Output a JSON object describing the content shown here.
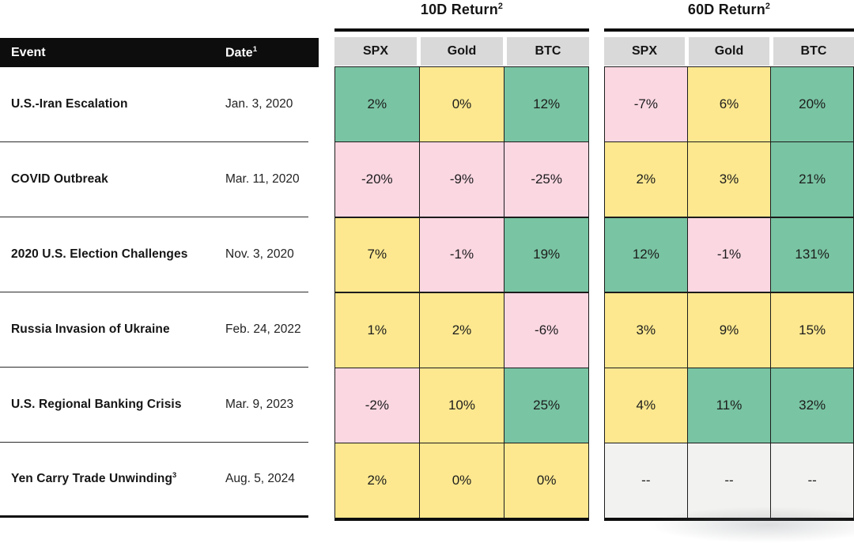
{
  "colors": {
    "positive_green": "#79c4a3",
    "neutral_yellow": "#fde88f",
    "negative_pink": "#fbd7e2",
    "na_gray": "#f2f2f0",
    "header_gray": "#d9d9d9",
    "header_black": "#0d0d0d"
  },
  "event_table": {
    "header": {
      "event_label": "Event",
      "date_label": "Date",
      "date_sup": "1"
    },
    "rows": [
      {
        "event": "U.S.-Iran Escalation",
        "sup": "",
        "date": "Jan. 3, 2020"
      },
      {
        "event": "COVID Outbreak",
        "sup": "",
        "date": "Mar. 11, 2020"
      },
      {
        "event": "2020 U.S. Election Challenges",
        "sup": "",
        "date": "Nov. 3, 2020"
      },
      {
        "event": "Russia Invasion of Ukraine",
        "sup": "",
        "date": "Feb. 24, 2022"
      },
      {
        "event": "U.S. Regional Banking Crisis",
        "sup": "",
        "date": "Mar. 9, 2023"
      },
      {
        "event": "Yen Carry Trade Unwinding",
        "sup": "3",
        "date": "Aug. 5, 2024"
      }
    ]
  },
  "g10": {
    "title": "10D Return",
    "sup": "2",
    "cols": [
      "SPX",
      "Gold",
      "BTC"
    ],
    "rows": [
      {
        "cells": [
          {
            "v": "2%",
            "c": "green"
          },
          {
            "v": "0%",
            "c": "yellow"
          },
          {
            "v": "12%",
            "c": "green"
          }
        ]
      },
      {
        "cells": [
          {
            "v": "-20%",
            "c": "pink"
          },
          {
            "v": "-9%",
            "c": "pink"
          },
          {
            "v": "-25%",
            "c": "pink"
          }
        ]
      },
      {
        "cells": [
          {
            "v": "7%",
            "c": "yellow"
          },
          {
            "v": "-1%",
            "c": "pink"
          },
          {
            "v": "19%",
            "c": "green"
          }
        ]
      },
      {
        "cells": [
          {
            "v": "1%",
            "c": "yellow"
          },
          {
            "v": "2%",
            "c": "yellow"
          },
          {
            "v": "-6%",
            "c": "pink"
          }
        ]
      },
      {
        "cells": [
          {
            "v": "-2%",
            "c": "pink"
          },
          {
            "v": "10%",
            "c": "yellow"
          },
          {
            "v": "25%",
            "c": "green"
          }
        ]
      },
      {
        "cells": [
          {
            "v": "2%",
            "c": "yellow"
          },
          {
            "v": "0%",
            "c": "yellow"
          },
          {
            "v": "0%",
            "c": "yellow"
          }
        ]
      }
    ]
  },
  "g60": {
    "title": "60D Return",
    "sup": "2",
    "cols": [
      "SPX",
      "Gold",
      "BTC"
    ],
    "rows": [
      {
        "cells": [
          {
            "v": "-7%",
            "c": "pink"
          },
          {
            "v": "6%",
            "c": "yellow"
          },
          {
            "v": "20%",
            "c": "green"
          }
        ]
      },
      {
        "cells": [
          {
            "v": "2%",
            "c": "yellow"
          },
          {
            "v": "3%",
            "c": "yellow"
          },
          {
            "v": "21%",
            "c": "green"
          }
        ]
      },
      {
        "cells": [
          {
            "v": "12%",
            "c": "green"
          },
          {
            "v": "-1%",
            "c": "pink"
          },
          {
            "v": "131%",
            "c": "green"
          }
        ]
      },
      {
        "cells": [
          {
            "v": "3%",
            "c": "yellow"
          },
          {
            "v": "9%",
            "c": "yellow"
          },
          {
            "v": "15%",
            "c": "yellow"
          }
        ]
      },
      {
        "cells": [
          {
            "v": "4%",
            "c": "yellow"
          },
          {
            "v": "11%",
            "c": "green"
          },
          {
            "v": "32%",
            "c": "green"
          }
        ]
      },
      {
        "cells": [
          {
            "v": "--",
            "c": "gray"
          },
          {
            "v": "--",
            "c": "gray"
          },
          {
            "v": "--",
            "c": "gray"
          }
        ]
      }
    ]
  },
  "chart_data": {
    "type": "table",
    "units": "percent",
    "column_groups": [
      {
        "label": "10D Return",
        "footnote": "2",
        "columns": [
          "SPX",
          "Gold",
          "BTC"
        ]
      },
      {
        "label": "60D Return",
        "footnote": "2",
        "columns": [
          "SPX",
          "Gold",
          "BTC"
        ]
      }
    ],
    "row_header_labels": {
      "event": "Event",
      "date": "Date",
      "date_footnote": "1"
    },
    "rows": [
      {
        "event": "U.S.-Iran Escalation",
        "date": "Jan. 3, 2020",
        "returns_10d": {
          "SPX": 2,
          "Gold": 0,
          "BTC": 12
        },
        "returns_60d": {
          "SPX": -7,
          "Gold": 6,
          "BTC": 20
        }
      },
      {
        "event": "COVID Outbreak",
        "date": "Mar. 11, 2020",
        "returns_10d": {
          "SPX": -20,
          "Gold": -9,
          "BTC": -25
        },
        "returns_60d": {
          "SPX": 2,
          "Gold": 3,
          "BTC": 21
        }
      },
      {
        "event": "2020 U.S. Election Challenges",
        "date": "Nov. 3, 2020",
        "returns_10d": {
          "SPX": 7,
          "Gold": -1,
          "BTC": 19
        },
        "returns_60d": {
          "SPX": 12,
          "Gold": -1,
          "BTC": 131
        }
      },
      {
        "event": "Russia Invasion of Ukraine",
        "date": "Feb. 24, 2022",
        "returns_10d": {
          "SPX": 1,
          "Gold": 2,
          "BTC": -6
        },
        "returns_60d": {
          "SPX": 3,
          "Gold": 9,
          "BTC": 15
        }
      },
      {
        "event": "U.S. Regional Banking Crisis",
        "date": "Mar. 9, 2023",
        "returns_10d": {
          "SPX": -2,
          "Gold": 10,
          "BTC": 25
        },
        "returns_60d": {
          "SPX": 4,
          "Gold": 11,
          "BTC": 32
        }
      },
      {
        "event": "Yen Carry Trade Unwinding",
        "event_footnote": "3",
        "date": "Aug. 5, 2024",
        "returns_10d": {
          "SPX": 2,
          "Gold": 0,
          "BTC": 0
        },
        "returns_60d": {
          "SPX": null,
          "Gold": null,
          "BTC": null
        }
      }
    ]
  }
}
